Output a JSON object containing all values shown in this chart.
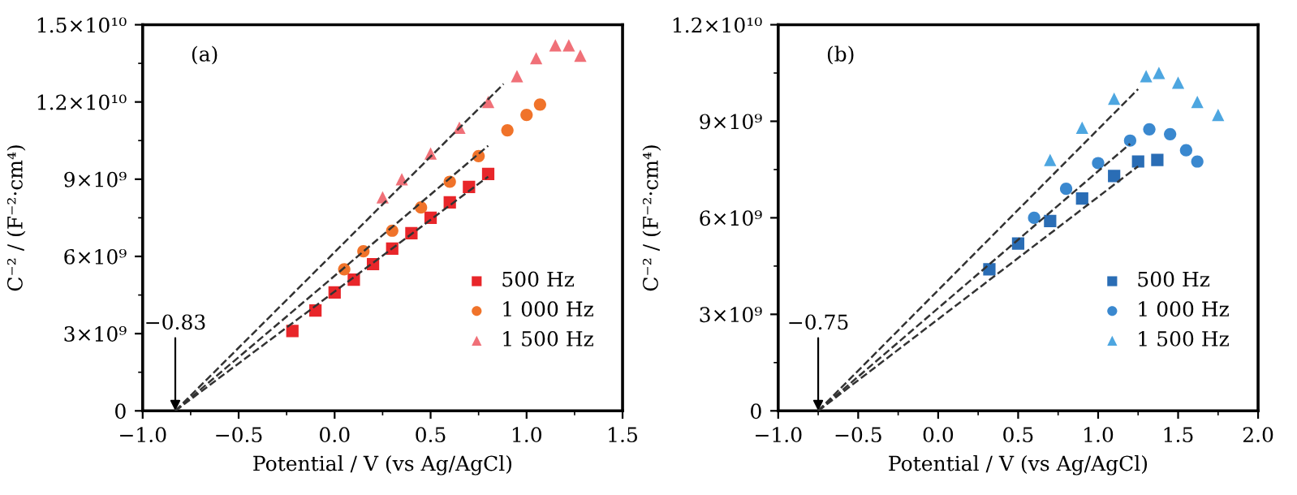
{
  "chart_data": [
    {
      "type": "scatter",
      "xlabel": "Potential / V (vs Ag/AgCl)",
      "ylabel": "C⁻² / (F⁻²·cm⁴)",
      "xlim": [
        -1.0,
        1.5
      ],
      "xticks": [
        {
          "value": -1.0,
          "label": "−1.0"
        },
        {
          "value": -0.5,
          "label": "−0.5"
        },
        {
          "value": 0.0,
          "label": "0.0"
        },
        {
          "value": 0.5,
          "label": "0.5"
        },
        {
          "value": 1.0,
          "label": "1.0"
        },
        {
          "value": 1.5,
          "label": "1.5"
        }
      ],
      "ylim": [
        0,
        15000000000
      ],
      "yticks": [
        0,
        {
          "value": 3000000000,
          "label": "3×10⁹"
        },
        {
          "value": 6000000000,
          "label": "6×10⁹"
        },
        {
          "value": 9000000000,
          "label": "9×10⁹"
        },
        {
          "value": 12000000000,
          "label": "1.2×10¹⁰"
        },
        {
          "value": 15000000000,
          "label": "1.5×10¹⁰"
        }
      ],
      "grid": false,
      "legend": "lower right",
      "annotations": [
        "(a)",
        {
          "text": "−0.83",
          "x": -0.83,
          "y": 0
        }
      ],
      "series": [
        {
          "name": "500 Hz",
          "color": "#e8262a",
          "marker": "square",
          "x": [
            -0.22,
            -0.1,
            0.0,
            0.1,
            0.2,
            0.3,
            0.4,
            0.5,
            0.6,
            0.7,
            0.8
          ],
          "values": [
            3100000000,
            3900000000,
            4600000000,
            5100000000,
            5700000000,
            6300000000,
            6900000000,
            7500000000,
            8100000000,
            8700000000,
            9200000000
          ]
        },
        {
          "name": "1 000 Hz",
          "color": "#f0732a",
          "marker": "circle",
          "x": [
            0.05,
            0.15,
            0.3,
            0.45,
            0.6,
            0.75,
            0.9,
            1.0,
            1.07
          ],
          "values": [
            5500000000,
            6200000000,
            7000000000,
            7900000000,
            8900000000,
            9900000000,
            10900000000,
            11500000000,
            11900000000
          ]
        },
        {
          "name": "1 500 Hz",
          "color": "#f07078",
          "marker": "triangle",
          "x": [
            0.25,
            0.35,
            0.5,
            0.65,
            0.8,
            0.95,
            1.05,
            1.15,
            1.22,
            1.28
          ],
          "values": [
            8300000000,
            9000000000,
            10000000000,
            11000000000,
            12000000000,
            13000000000,
            13700000000,
            14200000000,
            14200000000,
            13800000000
          ]
        },
        {
          "type": "line",
          "line_style": "dashed",
          "color": "#333333",
          "x": [
            -0.83,
            0.8
          ],
          "values": [
            0,
            9100000000
          ]
        },
        {
          "type": "line",
          "line_style": "dashed",
          "color": "#333333",
          "x": [
            -0.83,
            0.8
          ],
          "values": [
            0,
            10300000000
          ]
        },
        {
          "type": "line",
          "line_style": "dashed",
          "color": "#333333",
          "x": [
            -0.83,
            0.88
          ],
          "values": [
            0,
            12700000000
          ]
        }
      ]
    },
    {
      "type": "scatter",
      "xlabel": "Potential / V (vs Ag/AgCl)",
      "ylabel": "C⁻² / (F⁻²·cm⁴)",
      "xlim": [
        -1.0,
        2.0
      ],
      "xticks": [
        {
          "value": -1.0,
          "label": "−1.0"
        },
        {
          "value": -0.5,
          "label": "−0.5"
        },
        {
          "value": 0.0,
          "label": "0.0"
        },
        {
          "value": 0.5,
          "label": "0.5"
        },
        {
          "value": 1.0,
          "label": "1.0"
        },
        {
          "value": 1.5,
          "label": "1.5"
        },
        {
          "value": 2.0,
          "label": "2.0"
        }
      ],
      "ylim": [
        0,
        12000000000
      ],
      "yticks": [
        0,
        {
          "value": 3000000000,
          "label": "3×10⁹"
        },
        {
          "value": 6000000000,
          "label": "6×10⁹"
        },
        {
          "value": 9000000000,
          "label": "9×10⁹"
        },
        {
          "value": 12000000000,
          "label": "1.2×10¹⁰"
        }
      ],
      "grid": false,
      "legend": "lower right",
      "annotations": [
        "(b)",
        {
          "text": "−0.75",
          "x": -0.75,
          "y": 0
        }
      ],
      "series": [
        {
          "name": "500 Hz",
          "color": "#2a6db5",
          "marker": "square",
          "x": [
            0.32,
            0.5,
            0.7,
            0.9,
            1.1,
            1.25,
            1.37
          ],
          "values": [
            4400000000,
            5200000000,
            5900000000,
            6600000000,
            7300000000,
            7750000000,
            7800000000
          ]
        },
        {
          "name": "1 000 Hz",
          "color": "#3a88cf",
          "marker": "circle",
          "x": [
            0.6,
            0.8,
            1.0,
            1.2,
            1.32,
            1.45,
            1.55,
            1.62
          ],
          "values": [
            6000000000,
            6900000000,
            7700000000,
            8400000000,
            8750000000,
            8600000000,
            8100000000,
            7750000000
          ]
        },
        {
          "name": "1 500 Hz",
          "color": "#4da6e0",
          "marker": "triangle",
          "x": [
            0.7,
            0.9,
            1.1,
            1.3,
            1.38,
            1.5,
            1.62,
            1.75
          ],
          "values": [
            7800000000,
            8800000000,
            9700000000,
            10400000000,
            10500000000,
            10200000000,
            9600000000,
            9200000000
          ]
        },
        {
          "type": "line",
          "line_style": "dashed",
          "color": "#333333",
          "x": [
            -0.75,
            1.25
          ],
          "values": [
            0,
            7600000000
          ]
        },
        {
          "type": "line",
          "line_style": "dashed",
          "color": "#333333",
          "x": [
            -0.75,
            1.2
          ],
          "values": [
            0,
            8300000000
          ]
        },
        {
          "type": "line",
          "line_style": "dashed",
          "color": "#333333",
          "x": [
            -0.75,
            1.25
          ],
          "values": [
            0,
            10000000000
          ]
        }
      ]
    }
  ]
}
